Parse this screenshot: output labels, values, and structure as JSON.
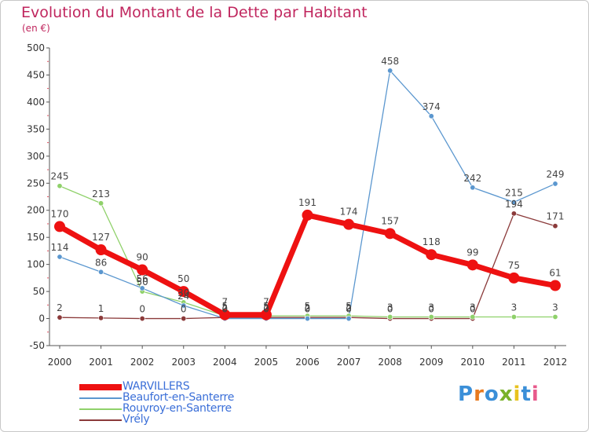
{
  "header": {
    "title": "Evolution du Montant de la Dette par Habitant",
    "subtitle": "(en €)"
  },
  "logo": {
    "text": "Proxiti",
    "colors": [
      "#3b8fd8",
      "#e87a1e",
      "#3b8fd8",
      "#7ab22a",
      "#e8c21e",
      "#3b8fd8",
      "#e85a8c"
    ]
  },
  "chart_data": {
    "type": "line",
    "title": "Evolution du Montant de la Dette par Habitant",
    "subtitle": "(en €)",
    "x": [
      "2000",
      "2001",
      "2002",
      "2003",
      "2004",
      "2005",
      "2006",
      "2007",
      "2008",
      "2009",
      "2010",
      "2011",
      "2012"
    ],
    "yticks": [
      "500",
      "450",
      "400",
      "350",
      "300",
      "250",
      "200",
      "150",
      "100",
      "50",
      "0",
      "-50"
    ],
    "ylim": [
      -50,
      500
    ],
    "grid": false,
    "legend_position": "bottom-left",
    "series": [
      {
        "name": "WARVILLERS",
        "color": "#ee1111",
        "values": [
          170,
          127,
          90,
          50,
          7,
          7,
          191,
          174,
          157,
          118,
          99,
          75,
          61
        ],
        "labels": [
          "170",
          "127",
          "90",
          "50",
          "7",
          "7",
          "191",
          "174",
          "157",
          "118",
          "99",
          "75",
          "61"
        ]
      },
      {
        "name": "Beaufort-en-Santerre",
        "color": "#5b97cf",
        "values": [
          114,
          86,
          56,
          24,
          0,
          0,
          0,
          0,
          458,
          374,
          242,
          215,
          249
        ],
        "labels": [
          "114",
          "86",
          "56",
          "24",
          "0",
          "0",
          "0",
          "0",
          "458",
          "374",
          "242",
          "215",
          "249"
        ]
      },
      {
        "name": "Rouvroy-en-Santerre",
        "color": "#8fd16a",
        "values": [
          245,
          213,
          50,
          30,
          5,
          5,
          5,
          5,
          3,
          3,
          3,
          3,
          3
        ],
        "labels": [
          "245",
          "213",
          "50",
          "30",
          "5",
          "5",
          "5",
          "5",
          "3",
          "3",
          "3",
          "3",
          "3"
        ]
      },
      {
        "name": "Vrély",
        "color": "#8b3a3a",
        "values": [
          2,
          1,
          0,
          0,
          2,
          2,
          2,
          2,
          0,
          0,
          0,
          194,
          171
        ],
        "labels": [
          "2",
          "1",
          "0",
          "0",
          "2",
          "2",
          "2",
          "2",
          "0",
          "0",
          "0",
          "194",
          "171"
        ]
      }
    ]
  }
}
